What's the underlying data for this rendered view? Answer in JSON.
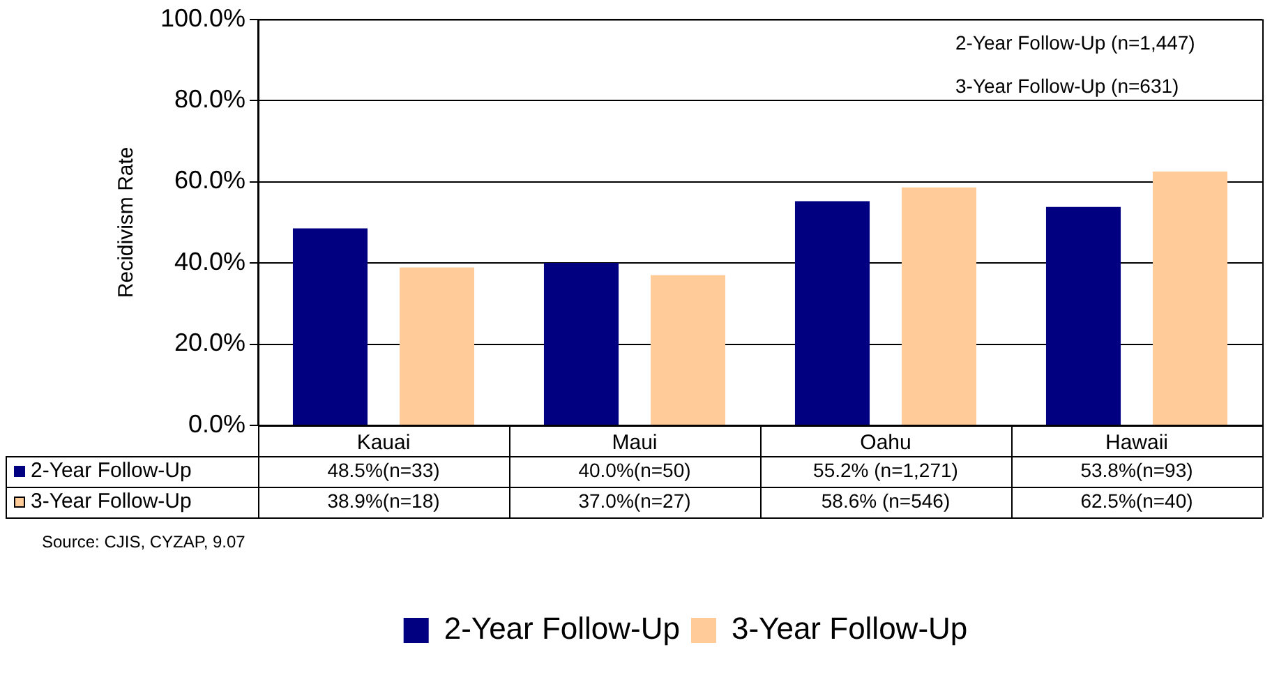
{
  "chart_data": {
    "type": "bar",
    "ylabel": "Recidivism Rate",
    "categories": [
      "Kauai",
      "Maui",
      "Oahu",
      "Hawaii"
    ],
    "series": [
      {
        "name": "2-Year Follow-Up",
        "color": "#000080",
        "values": [
          48.5,
          40.0,
          55.2,
          53.8
        ],
        "value_labels": [
          "48.5%(n=33)",
          "40.0%(n=50)",
          "55.2% (n=1,271)",
          "53.8%(n=93)"
        ]
      },
      {
        "name": "3-Year Follow-Up",
        "color": "#ffcc99",
        "values": [
          38.9,
          37.0,
          58.6,
          62.5
        ],
        "value_labels": [
          "38.9%(n=18)",
          "37.0%(n=27)",
          "58.6% (n=546)",
          "62.5%(n=40)"
        ]
      }
    ],
    "ylim": [
      0,
      100
    ],
    "yticks": [
      {
        "value": 0,
        "label": "0.0%"
      },
      {
        "value": 20,
        "label": "20.0%"
      },
      {
        "value": 40,
        "label": "40.0%"
      },
      {
        "value": 60,
        "label": "60.0%"
      },
      {
        "value": 80,
        "label": "80.0%"
      },
      {
        "value": 100,
        "label": "100.0%"
      }
    ],
    "grid": "y",
    "legend": "bottom",
    "annotations": [
      "2-Year Follow-Up (n=1,447)",
      "3-Year Follow-Up (n=631)",
      "Source: CJIS, CYZAP, 9.07"
    ]
  }
}
